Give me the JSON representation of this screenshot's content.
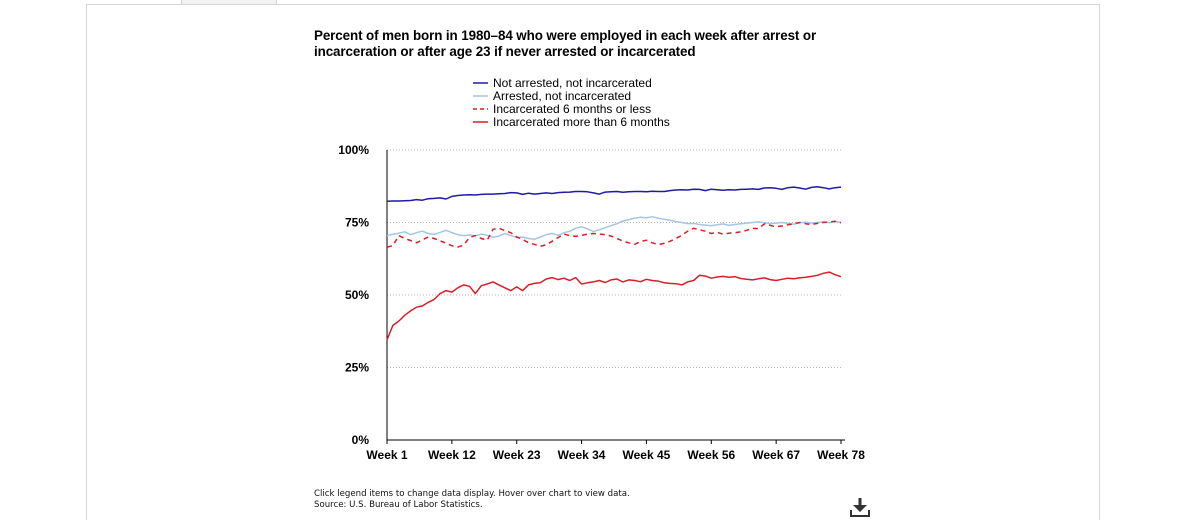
{
  "chart_data": {
    "type": "line",
    "title": "Percent of men born in 1980–84 who were employed in each week after arrest or incarceration or after age 23 if never arrested or incarcerated",
    "xlabel": "",
    "ylabel": "",
    "x_start": 1,
    "x_end": 78,
    "xlim": [
      1,
      78
    ],
    "ylim": [
      0,
      100
    ],
    "x_tick_values": [
      1,
      12,
      23,
      34,
      45,
      56,
      67,
      78
    ],
    "x_tick_labels": [
      "Week 1",
      "Week 12",
      "Week 23",
      "Week 34",
      "Week 45",
      "Week 56",
      "Week 67",
      "Week 78"
    ],
    "y_tick_values": [
      0,
      25,
      50,
      75,
      100
    ],
    "y_tick_labels": [
      "0%",
      "25%",
      "50%",
      "75%",
      "100%"
    ],
    "grid": "horizontal dotted",
    "legend_placement": "top",
    "series": [
      {
        "name": "Not arrested, not incarcerated",
        "color": "#1f1aa8",
        "dash": "solid",
        "values": [
          82.3,
          82.4,
          82.4,
          82.5,
          82.6,
          82.9,
          82.7,
          83.2,
          83.3,
          83.5,
          83.1,
          84.0,
          84.3,
          84.5,
          84.6,
          84.5,
          84.7,
          84.8,
          84.8,
          84.9,
          85.0,
          85.3,
          85.2,
          84.7,
          85.1,
          84.8,
          85.0,
          85.2,
          85.0,
          85.3,
          85.4,
          85.5,
          85.7,
          85.7,
          85.6,
          85.2,
          84.8,
          85.5,
          85.6,
          85.7,
          85.4,
          85.6,
          85.7,
          85.7,
          85.6,
          85.8,
          85.7,
          85.7,
          86.0,
          86.2,
          86.3,
          86.2,
          86.5,
          86.4,
          86.0,
          86.5,
          86.3,
          86.1,
          86.3,
          86.2,
          86.4,
          86.5,
          86.6,
          86.4,
          86.9,
          87.0,
          86.8,
          86.4,
          87.0,
          87.2,
          86.9,
          86.5,
          87.1,
          87.3,
          87.0,
          86.6,
          87.0,
          87.2
        ]
      },
      {
        "name": "Arrested, not incarcerated",
        "color": "#a6c4e6",
        "dash": "solid",
        "values": [
          70.5,
          71.0,
          71.3,
          71.8,
          70.8,
          71.5,
          72.0,
          71.2,
          70.9,
          71.6,
          72.3,
          71.5,
          70.8,
          70.5,
          70.7,
          70.4,
          71.0,
          70.6,
          69.9,
          70.3,
          71.2,
          70.5,
          69.8,
          70.0,
          69.5,
          69.2,
          70.0,
          70.8,
          71.2,
          70.6,
          71.5,
          72.0,
          73.0,
          73.5,
          72.8,
          71.9,
          72.5,
          73.2,
          73.9,
          74.6,
          75.5,
          76.0,
          76.5,
          76.8,
          76.6,
          77.0,
          76.5,
          76.1,
          75.8,
          75.3,
          75.0,
          74.6,
          74.7,
          74.3,
          74.1,
          73.9,
          74.2,
          74.5,
          74.0,
          74.3,
          74.6,
          74.8,
          75.0,
          75.2,
          74.9,
          74.6,
          74.8,
          75.0,
          74.7,
          74.4,
          74.9,
          75.1,
          74.8,
          75.0,
          75.2,
          74.9,
          75.3,
          75.1
        ]
      },
      {
        "name": "Incarcerated 6 months or less",
        "color": "#d61f28",
        "dash": "dashed",
        "values": [
          66.5,
          67.0,
          70.5,
          69.5,
          68.8,
          68.0,
          69.0,
          70.0,
          69.5,
          68.7,
          67.9,
          67.0,
          66.5,
          67.2,
          69.8,
          70.5,
          69.5,
          68.9,
          72.7,
          73.0,
          72.2,
          71.5,
          70.0,
          69.2,
          68.0,
          67.5,
          66.8,
          67.3,
          68.5,
          69.8,
          71.0,
          70.5,
          70.2,
          70.6,
          71.0,
          71.2,
          71.0,
          70.8,
          70.3,
          69.5,
          68.6,
          68.0,
          67.5,
          68.4,
          68.9,
          68.0,
          67.4,
          67.8,
          68.5,
          69.5,
          70.6,
          72.0,
          73.0,
          72.5,
          72.0,
          71.2,
          71.6,
          71.0,
          71.3,
          71.5,
          71.8,
          72.3,
          73.0,
          72.9,
          74.5,
          74.0,
          73.5,
          73.8,
          74.2,
          74.6,
          75.0,
          74.6,
          74.3,
          74.7,
          75.0,
          75.2,
          75.4,
          74.9
        ]
      },
      {
        "name": "Incarcerated more than 6 months",
        "color": "#d61f28",
        "dash": "solid",
        "values": [
          34.5,
          39.5,
          41.0,
          43.0,
          44.5,
          45.8,
          46.2,
          47.5,
          48.5,
          50.5,
          51.5,
          51.0,
          52.5,
          53.5,
          53.0,
          50.5,
          53.2,
          53.8,
          54.5,
          53.5,
          52.5,
          51.5,
          52.8,
          51.5,
          53.5,
          54.0,
          54.2,
          55.5,
          56.0,
          55.3,
          55.8,
          55.0,
          56.0,
          53.8,
          54.2,
          54.5,
          55.0,
          54.3,
          55.2,
          55.5,
          54.5,
          55.2,
          55.0,
          54.6,
          55.4,
          55.0,
          54.8,
          54.2,
          54.0,
          53.9,
          53.5,
          54.5,
          55.0,
          56.8,
          56.5,
          55.8,
          56.2,
          56.4,
          56.1,
          56.3,
          55.7,
          55.4,
          55.2,
          55.6,
          55.9,
          55.3,
          55.0,
          55.4,
          55.8,
          55.6,
          55.9,
          56.1,
          56.4,
          56.8,
          57.5,
          57.9,
          57.0,
          56.3
        ]
      }
    ]
  },
  "footer": {
    "instructions": "Click legend items to change data display. Hover over chart to view data.",
    "source": "Source: U.S. Bureau of Labor Statistics."
  },
  "icons": {
    "download": "download-icon"
  }
}
